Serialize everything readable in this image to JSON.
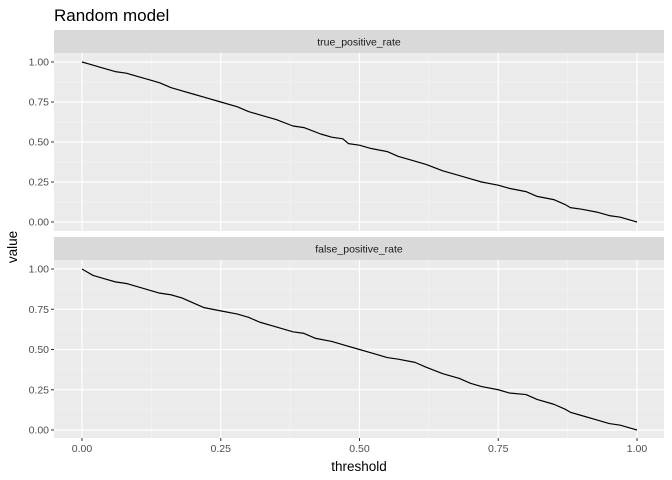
{
  "chart_data": {
    "type": "line",
    "title": "Random model",
    "xlabel": "threshold",
    "ylabel": "value",
    "xlim": [
      0,
      1
    ],
    "ylim": [
      0,
      1
    ],
    "x_ticks": [
      "0.00",
      "0.25",
      "0.50",
      "0.75",
      "1.00"
    ],
    "y_ticks": [
      "0.00",
      "0.25",
      "0.50",
      "0.75",
      "1.00"
    ],
    "grid": true,
    "facets": [
      {
        "label": "true_positive_rate",
        "x": [
          0.0,
          0.01,
          0.02,
          0.04,
          0.06,
          0.08,
          0.1,
          0.12,
          0.14,
          0.16,
          0.18,
          0.2,
          0.22,
          0.25,
          0.28,
          0.3,
          0.32,
          0.35,
          0.38,
          0.4,
          0.43,
          0.45,
          0.47,
          0.48,
          0.5,
          0.52,
          0.55,
          0.57,
          0.6,
          0.62,
          0.65,
          0.68,
          0.7,
          0.72,
          0.75,
          0.77,
          0.8,
          0.82,
          0.85,
          0.87,
          0.88,
          0.9,
          0.93,
          0.95,
          0.97,
          1.0
        ],
        "y": [
          1.0,
          0.99,
          0.98,
          0.96,
          0.94,
          0.93,
          0.91,
          0.89,
          0.87,
          0.84,
          0.82,
          0.8,
          0.78,
          0.75,
          0.72,
          0.69,
          0.67,
          0.64,
          0.6,
          0.59,
          0.55,
          0.53,
          0.52,
          0.49,
          0.48,
          0.46,
          0.44,
          0.41,
          0.38,
          0.36,
          0.32,
          0.29,
          0.27,
          0.25,
          0.23,
          0.21,
          0.19,
          0.16,
          0.14,
          0.11,
          0.09,
          0.08,
          0.06,
          0.04,
          0.03,
          0.0
        ]
      },
      {
        "label": "false_positive_rate",
        "x": [
          0.0,
          0.01,
          0.02,
          0.04,
          0.06,
          0.08,
          0.1,
          0.12,
          0.14,
          0.16,
          0.18,
          0.2,
          0.22,
          0.25,
          0.28,
          0.3,
          0.32,
          0.35,
          0.38,
          0.4,
          0.42,
          0.45,
          0.47,
          0.5,
          0.52,
          0.55,
          0.57,
          0.6,
          0.62,
          0.65,
          0.68,
          0.7,
          0.72,
          0.75,
          0.77,
          0.8,
          0.82,
          0.85,
          0.87,
          0.88,
          0.9,
          0.93,
          0.95,
          0.97,
          1.0
        ],
        "y": [
          1.0,
          0.98,
          0.96,
          0.94,
          0.92,
          0.91,
          0.89,
          0.87,
          0.85,
          0.84,
          0.82,
          0.79,
          0.76,
          0.74,
          0.72,
          0.7,
          0.67,
          0.64,
          0.61,
          0.6,
          0.57,
          0.55,
          0.53,
          0.5,
          0.48,
          0.45,
          0.44,
          0.42,
          0.39,
          0.35,
          0.32,
          0.29,
          0.27,
          0.25,
          0.23,
          0.22,
          0.19,
          0.16,
          0.13,
          0.11,
          0.09,
          0.06,
          0.04,
          0.03,
          0.0
        ]
      }
    ]
  }
}
